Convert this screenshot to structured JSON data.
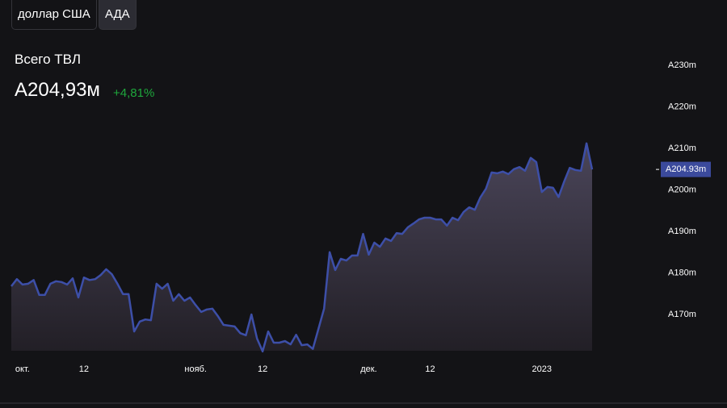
{
  "header": {
    "buttons": [
      "доллар США",
      "АДА"
    ],
    "title": "Всего ТВЛ",
    "value": "A204,93м",
    "change": "+4,81%"
  },
  "chart_data": {
    "type": "area",
    "color": "#3d4fa8",
    "categories": [
      null,
      null,
      "окт.",
      null,
      null,
      null,
      null,
      null,
      null,
      null,
      null,
      null,
      null,
      "12",
      null,
      null,
      null,
      null,
      null,
      null,
      null,
      null,
      null,
      null,
      null,
      null,
      null,
      null,
      null,
      null,
      null,
      null,
      null,
      "нояб.",
      null,
      null,
      null,
      null,
      null,
      null,
      null,
      null,
      null,
      null,
      null,
      "12",
      null,
      null,
      null,
      null,
      null,
      null,
      null,
      null,
      null,
      null,
      null,
      null,
      null,
      null,
      null,
      null,
      null,
      null,
      "дек.",
      null,
      null,
      null,
      null,
      null,
      null,
      null,
      null,
      null,
      null,
      "12",
      null,
      null,
      null,
      null,
      null,
      null,
      null,
      null,
      null,
      null,
      null,
      null,
      null,
      null,
      null,
      null,
      null,
      null,
      null,
      "2023",
      null,
      null,
      null,
      null,
      null,
      null,
      null,
      null,
      null
    ],
    "values": [
      176.8,
      178.5,
      177.2,
      177.4,
      178.3,
      174.7,
      174.7,
      177.4,
      178.0,
      177.8,
      177.2,
      178.7,
      174.1,
      178.9,
      178.3,
      178.5,
      179.5,
      180.9,
      179.7,
      177.4,
      174.9,
      174.9,
      165.9,
      168.3,
      168.8,
      168.6,
      177.4,
      176.2,
      177.4,
      173.3,
      174.9,
      173.3,
      174.1,
      172.3,
      170.6,
      171.2,
      171.4,
      169.6,
      167.5,
      167.3,
      167.1,
      165.5,
      165.0,
      170.0,
      164.2,
      161.1,
      165.9,
      163.2,
      163.2,
      163.6,
      162.8,
      165.1,
      162.6,
      162.8,
      161.7,
      166.5,
      171.4,
      185.0,
      180.7,
      183.4,
      183.0,
      184.2,
      184.2,
      189.4,
      184.4,
      187.3,
      186.3,
      188.3,
      187.7,
      189.6,
      189.4,
      191.0,
      191.9,
      192.9,
      193.3,
      193.3,
      192.9,
      192.9,
      191.4,
      193.3,
      192.7,
      194.7,
      195.8,
      195.2,
      198.2,
      200.3,
      204.2,
      204.0,
      204.4,
      203.8,
      205.0,
      205.5,
      204.6,
      207.7,
      206.7,
      199.5,
      200.7,
      200.5,
      198.3,
      202.0,
      205.3,
      204.8,
      204.6,
      211.2,
      204.93
    ],
    "current_label": "A204.93m",
    "ylim": [
      160,
      235
    ],
    "yticks": [
      {
        "value": 170,
        "label": "A170m"
      },
      {
        "value": 180,
        "label": "A180m"
      },
      {
        "value": 190,
        "label": "A190m"
      },
      {
        "value": 200,
        "label": "A200m"
      },
      {
        "value": 210,
        "label": "A210m"
      },
      {
        "value": 220,
        "label": "A220m"
      },
      {
        "value": 230,
        "label": "A230m"
      }
    ]
  }
}
